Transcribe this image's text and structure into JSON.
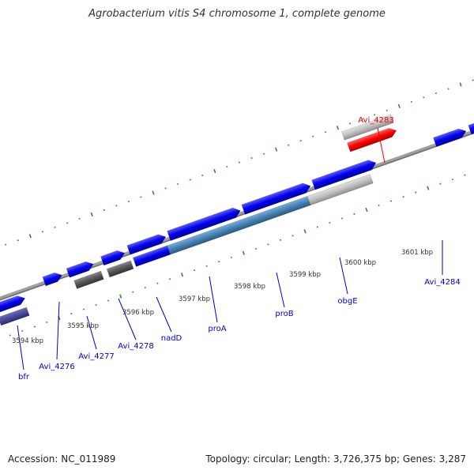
{
  "title": "Agrobacterium vitis S4 chromosome 1, complete genome",
  "footer": {
    "accession": "Accession: NC_011989",
    "stats": "Topology: circular; Length: 3,726,375 bp; Genes: 3,287"
  },
  "colors": {
    "backbone": "#808080",
    "gene_forward": "#0000ee",
    "gene_highlight": "#ff0000",
    "gene_highlight_faded": "#f08080",
    "feature_gray": "#555555",
    "feature_light": "#c0c0c0",
    "feature_steel": "#4682b4",
    "feature_indigo": "#3a3a90",
    "tick": "#2e8b2e",
    "label_blue": "#0000cc",
    "label_red": "#ee0000"
  },
  "scale_labels": [
    "3594 kbp",
    "3595 kbp",
    "3596 kbp",
    "3597 kbp",
    "3598 kbp",
    "3599 kbp",
    "3600 kbp",
    "3601 kbp"
  ],
  "gene_labels": [
    {
      "name": "bfr",
      "color": "blue"
    },
    {
      "name": "Avi_4276",
      "color": "blue"
    },
    {
      "name": "Avi_4277",
      "color": "blue"
    },
    {
      "name": "Avi_4278",
      "color": "blue"
    },
    {
      "name": "nadD",
      "color": "blue"
    },
    {
      "name": "proA",
      "color": "blue"
    },
    {
      "name": "proB",
      "color": "blue"
    },
    {
      "name": "obgE",
      "color": "blue"
    },
    {
      "name": "Avi_4284",
      "color": "blue"
    },
    {
      "name": "Avi_4283",
      "color": "red"
    }
  ]
}
